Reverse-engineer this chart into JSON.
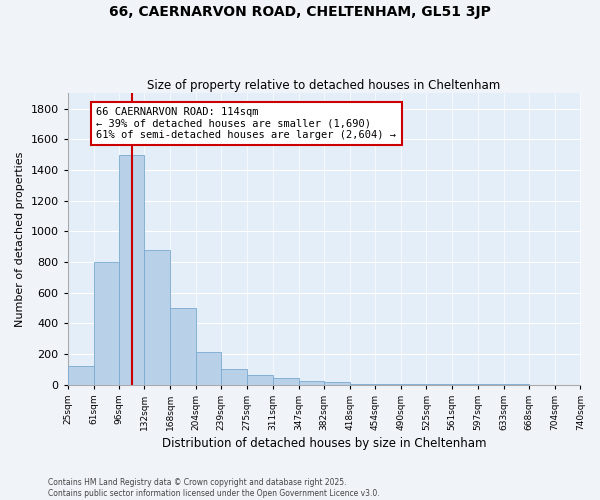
{
  "title": "66, CAERNARVON ROAD, CHELTENHAM, GL51 3JP",
  "subtitle": "Size of property relative to detached houses in Cheltenham",
  "xlabel": "Distribution of detached houses by size in Cheltenham",
  "ylabel": "Number of detached properties",
  "bin_edges": [
    25,
    61,
    96,
    132,
    168,
    204,
    239,
    275,
    311,
    347,
    382,
    418,
    454,
    490,
    525,
    561,
    597,
    633,
    668,
    704,
    740
  ],
  "bar_heights": [
    120,
    800,
    1500,
    880,
    500,
    210,
    100,
    65,
    45,
    25,
    20,
    5,
    3,
    2,
    1,
    1,
    1,
    1,
    0,
    0
  ],
  "bar_color": "#b8d0e8",
  "bar_edgecolor": "#7aaad0",
  "property_size": 114,
  "property_label": "66 CAERNARVON ROAD: 114sqm",
  "annotation_line1": "← 39% of detached houses are smaller (1,690)",
  "annotation_line2": "61% of semi-detached houses are larger (2,604) →",
  "vline_color": "#cc0000",
  "annotation_box_edgecolor": "#cc0000",
  "ylim": [
    0,
    1900
  ],
  "yticks": [
    0,
    200,
    400,
    600,
    800,
    1000,
    1200,
    1400,
    1600,
    1800
  ],
  "footer_line1": "Contains HM Land Registry data © Crown copyright and database right 2025.",
  "footer_line2": "Contains public sector information licensed under the Open Government Licence v3.0.",
  "background_color": "#f0f4f8",
  "plot_bg_color": "#e4eef8"
}
